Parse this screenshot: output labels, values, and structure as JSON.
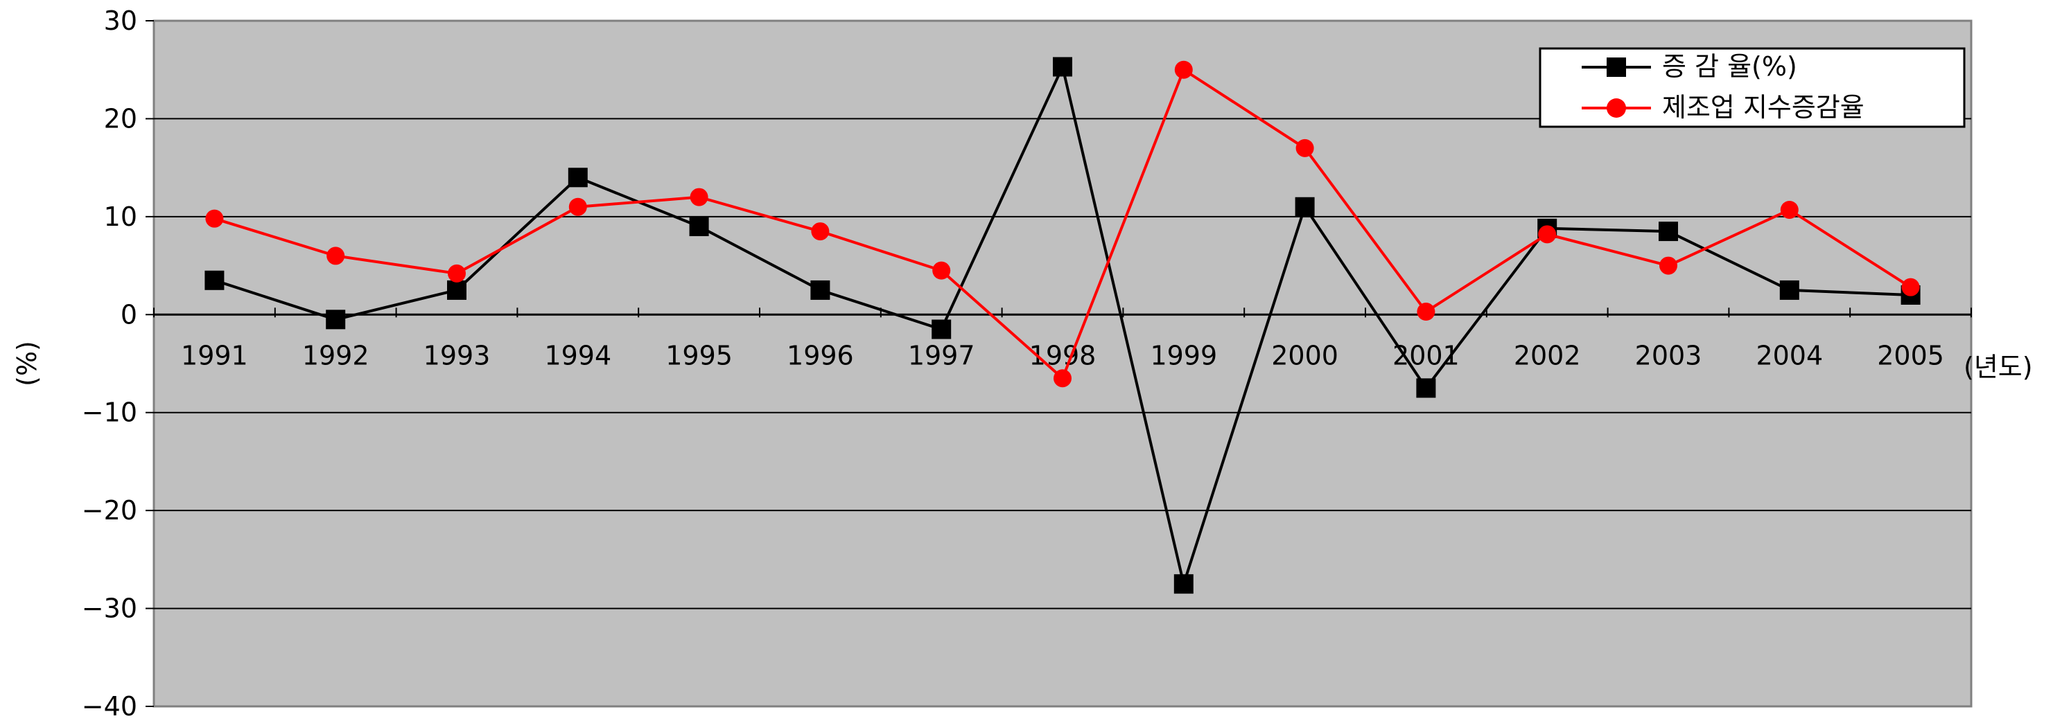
{
  "chart_data": {
    "type": "line",
    "ylabel": "(%)",
    "xunit": "(년도)",
    "ylim": [
      -40,
      30
    ],
    "yticks": [
      30,
      20,
      10,
      0,
      -10,
      -20,
      -30,
      -40
    ],
    "grid": "horizontal",
    "plot_background": "#c0c0c0",
    "legend_position": "top-right",
    "categories": [
      "1991",
      "1992",
      "1993",
      "1994",
      "1995",
      "1996",
      "1997",
      "1998",
      "1999",
      "2000",
      "2001",
      "2002",
      "2003",
      "2004",
      "2005"
    ],
    "series": [
      {
        "name": "증 감 율(%)",
        "color": "#000000",
        "marker": "square",
        "values": [
          3.5,
          -0.5,
          2.5,
          14,
          9,
          2.5,
          -1.5,
          25.3,
          -27.5,
          11,
          -7.5,
          8.8,
          8.5,
          2.5,
          2
        ]
      },
      {
        "name": "제조업 지수증감율",
        "color": "#ff0000",
        "marker": "circle",
        "values": [
          9.8,
          6,
          4.2,
          11,
          12,
          8.5,
          4.5,
          -6.5,
          25,
          17,
          0.3,
          8.2,
          5,
          10.7,
          2.8
        ]
      }
    ]
  }
}
